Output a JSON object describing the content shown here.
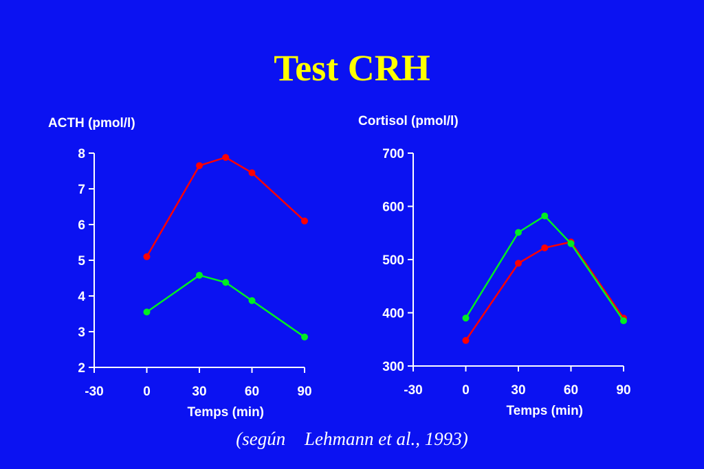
{
  "title": "Test CRH",
  "source": "(según \u0000Lehmann et al., 1993)",
  "colors": {
    "background": "#0b12f2",
    "title": "#ffff00",
    "red_series": "#ff0000",
    "green_series": "#00ee22",
    "axis": "#ffffff"
  },
  "chart_data": [
    {
      "type": "line",
      "title": "",
      "ylabel": "ACTH (pmol/l)",
      "xlabel": "Temps (min)",
      "xlim": [
        -30,
        90
      ],
      "ylim": [
        2,
        8
      ],
      "x_ticks": [
        -30,
        0,
        30,
        60,
        90
      ],
      "y_ticks": [
        2,
        3,
        4,
        5,
        6,
        7,
        8
      ],
      "grid": false,
      "series": [
        {
          "color": "#ff0000",
          "x": [
            0,
            30,
            45,
            60,
            90
          ],
          "y": [
            5.1,
            7.65,
            7.88,
            7.45,
            6.1
          ]
        },
        {
          "color": "#00ee22",
          "x": [
            0,
            30,
            45,
            60,
            90
          ],
          "y": [
            3.55,
            4.58,
            4.38,
            3.87,
            2.85
          ]
        }
      ]
    },
    {
      "type": "line",
      "title": "",
      "ylabel": "Cortisol (pmol/l)",
      "xlabel": "Temps (min)",
      "xlim": [
        -30,
        90
      ],
      "ylim": [
        300,
        700
      ],
      "x_ticks": [
        -30,
        0,
        30,
        60,
        90
      ],
      "y_ticks": [
        300,
        400,
        500,
        600,
        700
      ],
      "grid": false,
      "series": [
        {
          "color": "#ff0000",
          "x": [
            0,
            30,
            45,
            60,
            90
          ],
          "y": [
            348,
            493,
            522,
            533,
            390
          ]
        },
        {
          "color": "#00ee22",
          "x": [
            0,
            30,
            45,
            60,
            90
          ],
          "y": [
            390,
            551,
            582,
            530,
            385
          ]
        }
      ]
    }
  ]
}
